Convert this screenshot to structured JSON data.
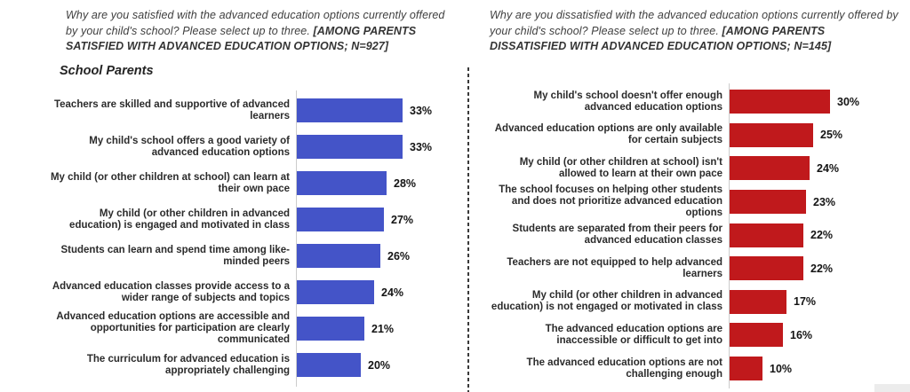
{
  "page": {
    "background": "#ffffff",
    "divider_color": "#3a3a3a",
    "axis_color": "#cccccc",
    "corner_box_color": "#ececec"
  },
  "chart_data": [
    {
      "type": "bar",
      "orientation": "horizontal",
      "title_plain": "Why are you satisfied with the advanced education options currently offered by your child's school? Please select up to three. ",
      "title_bold": "[AMONG PARENTS SATISFIED WITH ADVANCED EDUCATION OPTIONS; N=927]",
      "subtitle": "School Parents",
      "bar_color": "#4454c8",
      "value_suffix": "%",
      "xlim": [
        0,
        35
      ],
      "grid": false,
      "legend_position": "none",
      "categories": [
        "Teachers are skilled and supportive of advanced learners",
        "My child's school offers a good variety of advanced education options",
        "My child (or other children at school) can learn at their own pace",
        "My child (or other children in advanced education) is engaged and motivated in class",
        "Students can learn and spend time among like-minded peers",
        "Advanced education classes provide access to a wider range of subjects and topics",
        "Advanced education options are accessible and opportunities for participation are clearly communicated",
        "The curriculum for advanced education is appropriately challenging"
      ],
      "values": [
        33,
        33,
        28,
        27,
        26,
        24,
        21,
        20
      ]
    },
    {
      "type": "bar",
      "orientation": "horizontal",
      "title_plain": "Why are you dissatisfied with the advanced education options currently offered by your child's school? Please select up to three. ",
      "title_bold": "[AMONG PARENTS DISSATISFIED WITH ADVANCED EDUCATION OPTIONS; N=145]",
      "subtitle": "",
      "bar_color": "#c0191c",
      "value_suffix": "%",
      "xlim": [
        0,
        35
      ],
      "grid": false,
      "legend_position": "none",
      "categories": [
        "My child's school doesn't offer enough advanced education options",
        "Advanced education options are only available for certain subjects",
        "My child (or other children at school) isn't allowed to learn at their own pace",
        "The school focuses on helping other students and does not prioritize advanced education options",
        "Students are separated from their peers for advanced education classes",
        "Teachers are not equipped to help advanced learners",
        "My child (or other children in advanced education) is not engaged or motivated in class",
        "The advanced education options are inaccessible or difficult to get into",
        "The advanced education options are not challenging enough"
      ],
      "values": [
        30,
        25,
        24,
        23,
        22,
        22,
        17,
        16,
        10
      ]
    }
  ]
}
